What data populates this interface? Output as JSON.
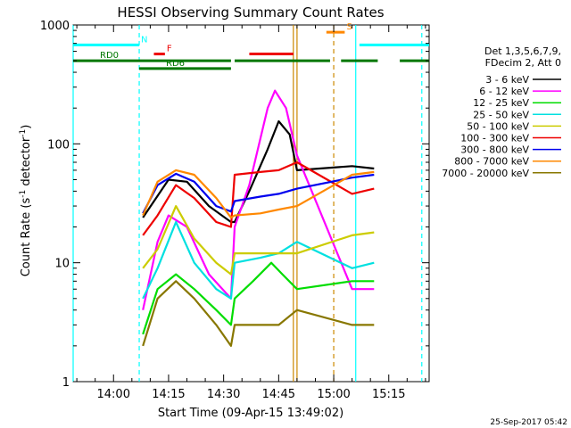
{
  "chart_data": {
    "type": "line",
    "title": "HESSI Observing Summary Count Rates",
    "xlabel": "Start Time (09-Apr-15 13:49:02)",
    "ylabel_main": "Count Rate (s",
    "ylabel_sup1": "-1",
    "ylabel_mid": " detector",
    "ylabel_sup2": "-1",
    "ylabel_end": ")",
    "footer": "25-Sep-2017 05:42",
    "y_scale": "log",
    "ylim": [
      1,
      1000
    ],
    "xlim": [
      "13:49:02",
      "15:26:00"
    ],
    "x_ticks": [
      "14:00",
      "14:15",
      "14:30",
      "14:45",
      "15:00",
      "15:15"
    ],
    "y_ticks": [
      "1",
      "10",
      "100",
      "1000"
    ],
    "legend_header": [
      "Det 1,3,5,6,7,9,",
      "FDecim 2, Att 0"
    ],
    "legend_position": "right",
    "series": [
      {
        "name": "3 - 6 keV",
        "color": "#000000",
        "points": [
          [
            "14:08",
            24
          ],
          [
            "14:15",
            50
          ],
          [
            "14:20",
            48
          ],
          [
            "14:26",
            30
          ],
          [
            "14:32",
            22
          ],
          [
            "14:33",
            22
          ],
          [
            "14:37",
            40
          ],
          [
            "14:42",
            90
          ],
          [
            "14:45",
            155
          ],
          [
            "14:48",
            120
          ],
          [
            "14:50",
            60
          ],
          [
            "15:05",
            65
          ],
          [
            "15:11",
            62
          ]
        ]
      },
      {
        "name": "6 - 12 keV",
        "color": "#ff00ff",
        "points": [
          [
            "14:08",
            4
          ],
          [
            "14:12",
            15
          ],
          [
            "14:15",
            25
          ],
          [
            "14:20",
            20
          ],
          [
            "14:26",
            8
          ],
          [
            "14:32",
            5
          ],
          [
            "14:33",
            20
          ],
          [
            "14:37",
            45
          ],
          [
            "14:42",
            200
          ],
          [
            "14:44",
            280
          ],
          [
            "14:47",
            200
          ],
          [
            "14:50",
            80
          ],
          [
            "15:05",
            6
          ],
          [
            "15:11",
            6
          ]
        ]
      },
      {
        "name": "12 - 25 keV",
        "color": "#00dd00",
        "points": [
          [
            "14:08",
            2.5
          ],
          [
            "14:12",
            6
          ],
          [
            "14:17",
            8
          ],
          [
            "14:22",
            6
          ],
          [
            "14:28",
            4
          ],
          [
            "14:32",
            3
          ],
          [
            "14:33",
            5
          ],
          [
            "14:38",
            7
          ],
          [
            "14:43",
            10
          ],
          [
            "14:46",
            8
          ],
          [
            "14:50",
            6
          ],
          [
            "15:05",
            7
          ],
          [
            "15:11",
            7
          ]
        ]
      },
      {
        "name": "25 - 50 keV",
        "color": "#00e0e0",
        "points": [
          [
            "14:08",
            5
          ],
          [
            "14:12",
            9
          ],
          [
            "14:17",
            22
          ],
          [
            "14:22",
            10
          ],
          [
            "14:28",
            6
          ],
          [
            "14:32",
            5
          ],
          [
            "14:33",
            10
          ],
          [
            "14:40",
            11
          ],
          [
            "14:45",
            12
          ],
          [
            "14:50",
            15
          ],
          [
            "15:05",
            9
          ],
          [
            "15:11",
            10
          ]
        ]
      },
      {
        "name": "50 - 100 keV",
        "color": "#cccc00",
        "points": [
          [
            "14:08",
            9
          ],
          [
            "14:12",
            13
          ],
          [
            "14:17",
            30
          ],
          [
            "14:22",
            16
          ],
          [
            "14:28",
            10
          ],
          [
            "14:32",
            8
          ],
          [
            "14:33",
            12
          ],
          [
            "14:40",
            12
          ],
          [
            "14:45",
            12
          ],
          [
            "14:50",
            12
          ],
          [
            "15:05",
            17
          ],
          [
            "15:11",
            18
          ]
        ]
      },
      {
        "name": "100 - 300 keV",
        "color": "#ee0000",
        "points": [
          [
            "14:08",
            17
          ],
          [
            "14:12",
            25
          ],
          [
            "14:17",
            45
          ],
          [
            "14:22",
            35
          ],
          [
            "14:28",
            22
          ],
          [
            "14:32",
            20
          ],
          [
            "14:33",
            55
          ],
          [
            "14:40",
            58
          ],
          [
            "14:45",
            60
          ],
          [
            "14:50",
            70
          ],
          [
            "15:05",
            38
          ],
          [
            "15:11",
            42
          ]
        ]
      },
      {
        "name": "300 - 800 keV",
        "color": "#0000ee",
        "points": [
          [
            "14:08",
            26
          ],
          [
            "14:12",
            45
          ],
          [
            "14:17",
            56
          ],
          [
            "14:22",
            48
          ],
          [
            "14:28",
            30
          ],
          [
            "14:32",
            27
          ],
          [
            "14:33",
            33
          ],
          [
            "14:40",
            36
          ],
          [
            "14:45",
            38
          ],
          [
            "14:50",
            42
          ],
          [
            "15:05",
            52
          ],
          [
            "15:11",
            55
          ]
        ]
      },
      {
        "name": "800 - 7000 keV",
        "color": "#ff8800",
        "points": [
          [
            "14:08",
            25
          ],
          [
            "14:12",
            48
          ],
          [
            "14:17",
            60
          ],
          [
            "14:22",
            55
          ],
          [
            "14:28",
            35
          ],
          [
            "14:32",
            24
          ],
          [
            "14:33",
            25
          ],
          [
            "14:40",
            26
          ],
          [
            "14:45",
            28
          ],
          [
            "14:50",
            30
          ],
          [
            "15:05",
            55
          ],
          [
            "15:11",
            58
          ]
        ]
      },
      {
        "name": "7000 - 20000 keV",
        "color": "#887700",
        "points": [
          [
            "14:08",
            2
          ],
          [
            "14:12",
            5
          ],
          [
            "14:17",
            7
          ],
          [
            "14:22",
            5
          ],
          [
            "14:28",
            3
          ],
          [
            "14:32",
            2
          ],
          [
            "14:33",
            3
          ],
          [
            "14:40",
            3
          ],
          [
            "14:45",
            3
          ],
          [
            "14:50",
            4
          ],
          [
            "15:05",
            3
          ],
          [
            "15:11",
            3
          ]
        ]
      }
    ],
    "flag_bars": [
      {
        "label": "N",
        "color": "#00ffff",
        "y": 680,
        "segments": [
          [
            "13:49",
            "14:07"
          ],
          [
            "15:07",
            "15:26"
          ]
        ]
      },
      {
        "label": "S",
        "color": "#ff8800",
        "y": 870,
        "segments": [
          [
            "14:58",
            "15:03"
          ]
        ]
      },
      {
        "label": "F",
        "color": "#ee0000",
        "y": 570,
        "segments": [
          [
            "14:11",
            "14:14"
          ],
          [
            "14:37",
            "14:49"
          ]
        ]
      },
      {
        "label": "RD0",
        "color": "#007700",
        "y": 500,
        "segments": [
          [
            "13:49",
            "14:32"
          ],
          [
            "14:33",
            "14:59"
          ],
          [
            "15:02",
            "15:12"
          ],
          [
            "15:18",
            "15:26"
          ]
        ]
      },
      {
        "label": "RD6",
        "color": "#007700",
        "y": 430,
        "segments": [
          [
            "14:07",
            "14:32"
          ]
        ]
      }
    ],
    "vlines": [
      {
        "t": "13:49",
        "color": "#00ffff",
        "style": "solid"
      },
      {
        "t": "14:07",
        "color": "#00ffff",
        "style": "dashed"
      },
      {
        "t": "14:49",
        "color": "#cc8800",
        "style": "solid"
      },
      {
        "t": "14:50",
        "color": "#cc8800",
        "style": "solid"
      },
      {
        "t": "15:00",
        "color": "#cc8800",
        "style": "dashed"
      },
      {
        "t": "15:06",
        "color": "#00ffff",
        "style": "solid"
      },
      {
        "t": "15:24",
        "color": "#00ffff",
        "style": "dashed"
      }
    ]
  }
}
